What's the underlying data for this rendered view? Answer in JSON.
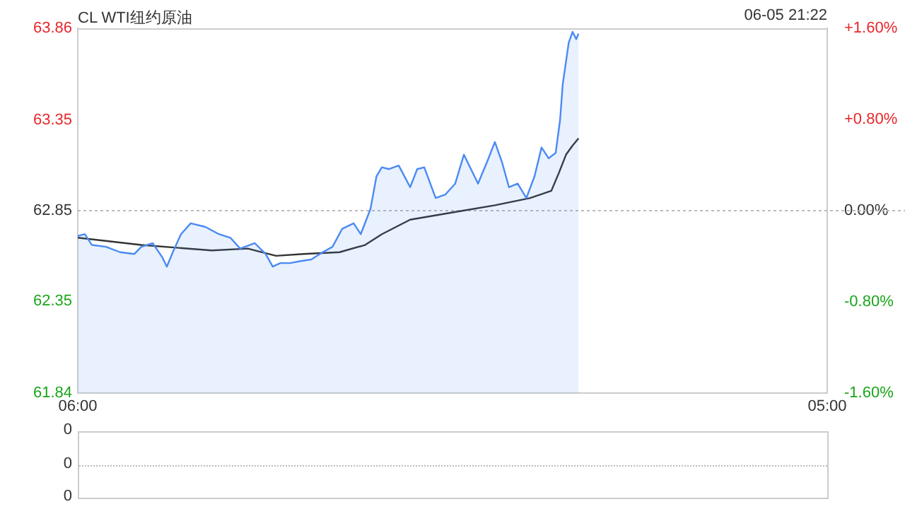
{
  "chart_data": [
    {
      "type": "area",
      "title": "CL WTI纽约原油",
      "annotations": [
        "06-05 21:22"
      ],
      "xlim": [
        "--06-05T06:00",
        "--06-06T05:00"
      ],
      "xticks": [
        {
          "value": "--06-05T06:00",
          "label": "06:00"
        },
        {
          "value": "--06-06T05:00",
          "label": "05:00"
        }
      ],
      "ylim": [
        61.84,
        63.86
      ],
      "yticks": [
        61.84,
        62.35,
        62.85,
        63.35,
        63.86
      ],
      "y2lim": [
        -1.6,
        1.6
      ],
      "y2ticks": [
        {
          "value": -1.6,
          "label": "-1.60%"
        },
        {
          "value": -0.8,
          "label": "-0.80%"
        },
        {
          "value": 0,
          "label": "0.00%"
        },
        {
          "value": 0.8,
          "label": "+0.80%"
        },
        {
          "value": 1.6,
          "label": "+1.60%"
        }
      ],
      "grid": false,
      "legend": false,
      "marker": "none",
      "ref_lines": [
        {
          "axis": "y",
          "value": 62.85,
          "color": "#bbbbbb",
          "line_style": "dotted"
        }
      ],
      "series": [
        {
          "color": "#4a8af4",
          "x": [
            "--06-05T06:00",
            "--06-05T06:13",
            "--06-05T06:26",
            "--06-05T06:52",
            "--06-05T07:18",
            "--06-05T07:44",
            "--06-05T07:57",
            "--06-05T08:18",
            "--06-05T08:36",
            "--06-05T08:44",
            "--06-05T08:55",
            "--06-05T09:10",
            "--06-05T09:28",
            "--06-05T09:55",
            "--06-05T10:20",
            "--06-05T10:41",
            "--06-05T10:59",
            "--06-05T11:26",
            "--06-05T11:46",
            "--06-05T11:59",
            "--06-05T12:13",
            "--06-05T12:31",
            "--06-05T12:49",
            "--06-05T13:10",
            "--06-05T13:31",
            "--06-05T13:49",
            "--06-05T14:07",
            "--06-05T14:28",
            "--06-05T14:41",
            "--06-05T14:59",
            "--06-05T15:10",
            "--06-05T15:20",
            "--06-05T15:33",
            "--06-05T15:51",
            "--06-05T16:12",
            "--06-05T16:25",
            "--06-05T16:38",
            "--06-05T16:59",
            "--06-05T17:17",
            "--06-05T17:35",
            "--06-05T17:51",
            "--06-05T18:04",
            "--06-05T18:17",
            "--06-05T18:35",
            "--06-05T18:48",
            "--06-05T19:01",
            "--06-05T19:14",
            "--06-05T19:30",
            "--06-05T19:46",
            "--06-05T20:01",
            "--06-05T20:14",
            "--06-05T20:27",
            "--06-05T20:40",
            "--06-05T20:48",
            "--06-05T20:53",
            "--06-05T21:04",
            "--06-05T21:11",
            "--06-05T21:18",
            "--06-05T21:22"
          ],
          "values": [
            62.71,
            62.72,
            62.66,
            62.65,
            62.62,
            62.61,
            62.65,
            62.67,
            62.59,
            62.54,
            62.62,
            62.72,
            62.78,
            62.76,
            62.72,
            62.7,
            62.64,
            62.67,
            62.61,
            62.54,
            62.56,
            62.56,
            62.57,
            62.58,
            62.62,
            62.65,
            62.75,
            62.78,
            62.72,
            62.86,
            63.04,
            63.09,
            63.08,
            63.1,
            62.98,
            63.08,
            63.09,
            62.92,
            62.94,
            63.0,
            63.16,
            63.08,
            63.0,
            63.13,
            63.23,
            63.12,
            62.98,
            63.0,
            62.92,
            63.04,
            63.2,
            63.14,
            63.17,
            63.35,
            63.55,
            63.78,
            63.84,
            63.8,
            63.83
          ]
        },
        {
          "type": "line",
          "color": "#333333",
          "x": [
            "--06-05T06:00",
            "--06-05T07:57",
            "--06-05T10:07",
            "--06-05T11:13",
            "--06-05T12:05",
            "--06-05T12:56",
            "--06-05T14:02",
            "--06-05T14:49",
            "--06-05T15:20",
            "--06-05T16:12",
            "--06-05T17:30",
            "--06-05T18:48",
            "--06-05T19:53",
            "--06-05T20:32",
            "--06-05T20:46",
            "--06-05T20:59",
            "--06-05T21:11",
            "--06-05T21:22"
          ],
          "values": [
            62.7,
            62.66,
            62.63,
            62.64,
            62.6,
            62.61,
            62.62,
            62.66,
            62.72,
            62.8,
            62.84,
            62.88,
            62.92,
            62.96,
            63.06,
            63.16,
            63.21,
            63.25
          ]
        }
      ]
    },
    {
      "type": "other",
      "annotations": [
        "0",
        "0",
        "0"
      ]
    }
  ]
}
